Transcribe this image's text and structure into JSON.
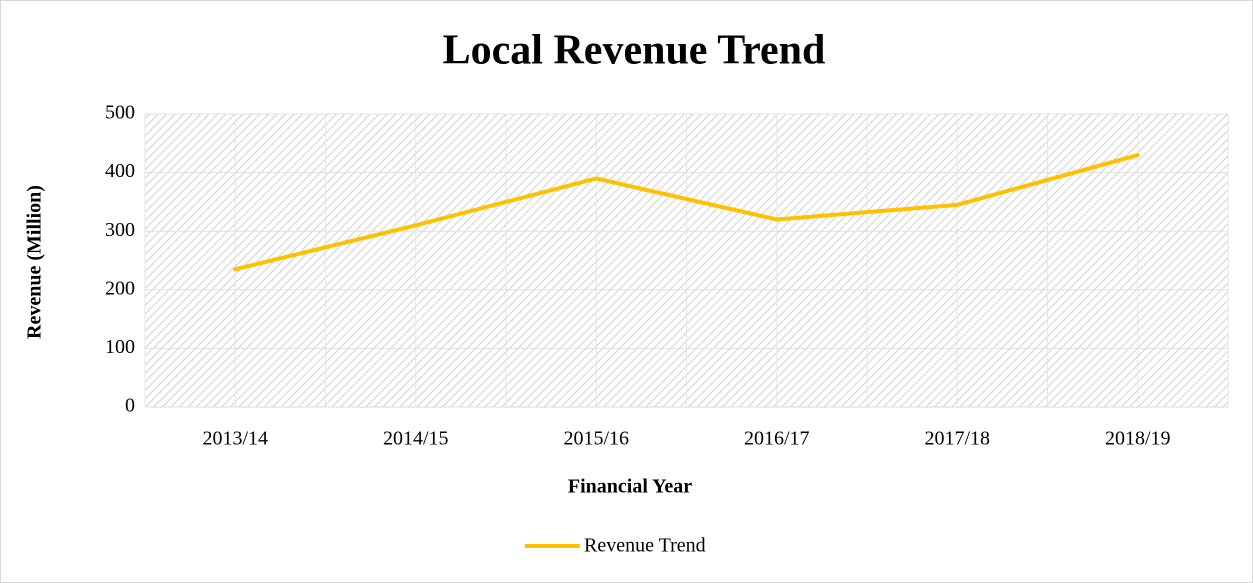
{
  "chart_data": {
    "type": "line",
    "title": "Local Revenue Trend",
    "x_label": "Financial Year",
    "y_label": "Revenue (Million)",
    "categories": [
      "2013/14",
      "2014/15",
      "2015/16",
      "2016/17",
      "2017/18",
      "2018/19"
    ],
    "series": [
      {
        "name": "Revenue Trend",
        "color": "#ffc000",
        "values": [
          235,
          310,
          390,
          320,
          345,
          430
        ]
      }
    ],
    "ylim": [
      0,
      500
    ],
    "yticks": [
      0,
      100,
      200,
      300,
      400,
      500
    ],
    "grid": true,
    "legend": "bottom"
  }
}
